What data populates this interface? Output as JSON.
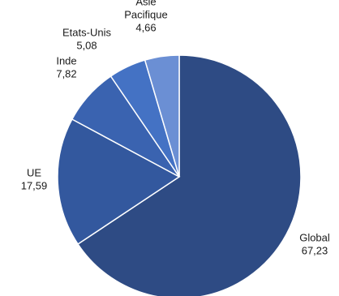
{
  "chart_data": {
    "type": "pie",
    "title": "",
    "slices": [
      {
        "label_lines": [
          "Global"
        ],
        "label": "Global",
        "value": 67.23,
        "value_text": "67,23",
        "color": "#2e4b84"
      },
      {
        "label_lines": [
          "UE"
        ],
        "label": "UE",
        "value": 17.59,
        "value_text": "17,59",
        "color": "#33589e"
      },
      {
        "label_lines": [
          "Inde"
        ],
        "label": "Inde",
        "value": 7.82,
        "value_text": "7,82",
        "color": "#3a63b0"
      },
      {
        "label_lines": [
          "Etats-Unis"
        ],
        "label": "Etats-Unis",
        "value": 5.08,
        "value_text": "5,08",
        "color": "#4472c4"
      },
      {
        "label_lines": [
          "Asie",
          "Pacifique"
        ],
        "label": "Asie Pacifique",
        "value": 4.66,
        "value_text": "4,66",
        "color": "#6b8fd4"
      }
    ],
    "start_angle_deg": 0,
    "direction": "clockwise"
  }
}
